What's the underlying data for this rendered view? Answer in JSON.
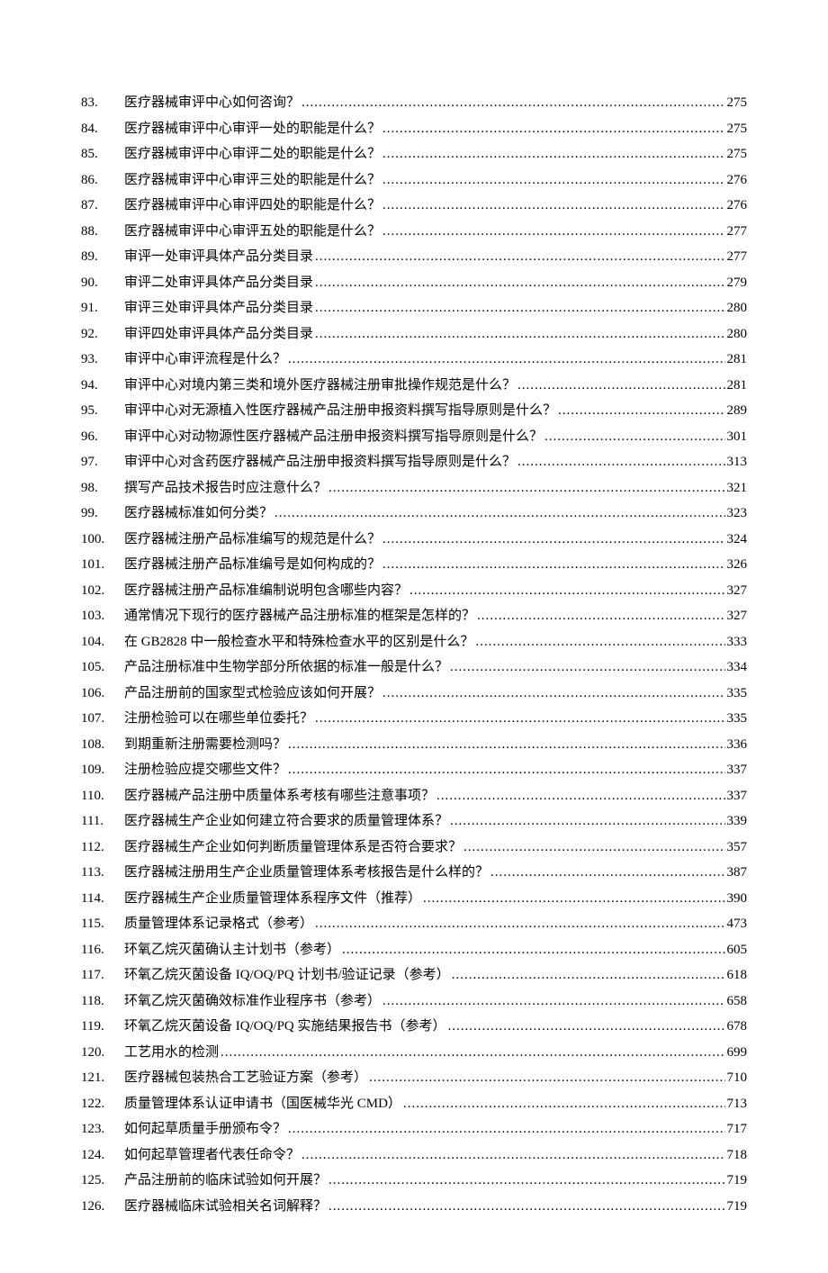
{
  "text_color": "#000000",
  "background_color": "#ffffff",
  "font_family": "SimSun",
  "font_size_pt": 11,
  "line_height": 1.9,
  "toc": [
    {
      "n": "83.",
      "title": "医疗器械审评中心如何咨询？",
      "page": "275"
    },
    {
      "n": "84.",
      "title": "医疗器械审评中心审评一处的职能是什么？",
      "page": "275"
    },
    {
      "n": "85.",
      "title": "医疗器械审评中心审评二处的职能是什么？",
      "page": "275"
    },
    {
      "n": "86.",
      "title": "医疗器械审评中心审评三处的职能是什么？",
      "page": "276"
    },
    {
      "n": "87.",
      "title": "医疗器械审评中心审评四处的职能是什么？",
      "page": "276"
    },
    {
      "n": "88.",
      "title": "医疗器械审评中心审评五处的职能是什么？",
      "page": "277"
    },
    {
      "n": "89.",
      "title": "审评一处审评具体产品分类目录",
      "page": "277"
    },
    {
      "n": "90.",
      "title": "审评二处审评具体产品分类目录",
      "page": "279"
    },
    {
      "n": "91.",
      "title": "审评三处审评具体产品分类目录",
      "page": "280"
    },
    {
      "n": "92.",
      "title": "审评四处审评具体产品分类目录",
      "page": "280"
    },
    {
      "n": "93.",
      "title": "审评中心审评流程是什么？",
      "page": "281"
    },
    {
      "n": "94.",
      "title": "审评中心对境内第三类和境外医疗器械注册审批操作规范是什么？",
      "page": "281"
    },
    {
      "n": "95.",
      "title": "审评中心对无源植入性医疗器械产品注册申报资料撰写指导原则是什么？",
      "page": "289"
    },
    {
      "n": "96.",
      "title": "审评中心对动物源性医疗器械产品注册申报资料撰写指导原则是什么？",
      "page": "301"
    },
    {
      "n": "97.",
      "title": "审评中心对含药医疗器械产品注册申报资料撰写指导原则是什么？",
      "page": "313"
    },
    {
      "n": "98.",
      "title": "撰写产品技术报告时应注意什么？",
      "page": "321"
    },
    {
      "n": "99.",
      "title": "医疗器械标准如何分类？",
      "page": "323"
    },
    {
      "n": "100.",
      "title": "医疗器械注册产品标准编写的规范是什么？",
      "page": "324"
    },
    {
      "n": "101.",
      "title": "医疗器械注册产品标准编号是如何构成的？",
      "page": "326"
    },
    {
      "n": "102.",
      "title": "医疗器械注册产品标准编制说明包含哪些内容？",
      "page": "327"
    },
    {
      "n": "103.",
      "title": "通常情况下现行的医疗器械产品注册标准的框架是怎样的？",
      "page": "327"
    },
    {
      "n": "104.",
      "title": "在 GB2828 中一般检查水平和特殊检查水平的区别是什么？",
      "page": "333"
    },
    {
      "n": "105.",
      "title": "产品注册标准中生物学部分所依据的标准一般是什么？",
      "page": "334"
    },
    {
      "n": "106.",
      "title": "产品注册前的国家型式检验应该如何开展？",
      "page": "335"
    },
    {
      "n": "107.",
      "title": "注册检验可以在哪些单位委托？",
      "page": "335"
    },
    {
      "n": "108.",
      "title": "到期重新注册需要检测吗？",
      "page": "336"
    },
    {
      "n": "109.",
      "title": "注册检验应提交哪些文件？",
      "page": "337"
    },
    {
      "n": "110.",
      "title": "医疗器械产品注册中质量体系考核有哪些注意事项？",
      "page": "337"
    },
    {
      "n": "111.",
      "title": "医疗器械生产企业如何建立符合要求的质量管理体系？",
      "page": "339"
    },
    {
      "n": "112.",
      "title": "医疗器械生产企业如何判断质量管理体系是否符合要求？",
      "page": "357"
    },
    {
      "n": "113.",
      "title": "医疗器械注册用生产企业质量管理体系考核报告是什么样的？",
      "page": "387"
    },
    {
      "n": "114.",
      "title": "医疗器械生产企业质量管理体系程序文件（推荐）",
      "page": "390"
    },
    {
      "n": "115.",
      "title": "质量管理体系记录格式（参考）",
      "page": "473"
    },
    {
      "n": "116.",
      "title": "环氧乙烷灭菌确认主计划书（参考）",
      "page": "605"
    },
    {
      "n": "117.",
      "title": "环氧乙烷灭菌设备 IQ/OQ/PQ 计划书/验证记录（参考）",
      "page": "618"
    },
    {
      "n": "118.",
      "title": "环氧乙烷灭菌确效标准作业程序书（参考）",
      "page": "658"
    },
    {
      "n": "119.",
      "title": "环氧乙烷灭菌设备 IQ/OQ/PQ 实施结果报告书（参考）",
      "page": "678"
    },
    {
      "n": "120.",
      "title": "工艺用水的检测",
      "page": "699"
    },
    {
      "n": "121.",
      "title": "医疗器械包装热合工艺验证方案（参考）",
      "page": "710"
    },
    {
      "n": "122.",
      "title": "质量管理体系认证申请书（国医械华光 CMD）",
      "page": "713"
    },
    {
      "n": "123.",
      "title": "如何起草质量手册颁布令？",
      "page": "717"
    },
    {
      "n": "124.",
      "title": "如何起草管理者代表任命令？",
      "page": "718"
    },
    {
      "n": "125.",
      "title": "产品注册前的临床试验如何开展？",
      "page": "719"
    },
    {
      "n": "126.",
      "title": "医疗器械临床试验相关名词解释？",
      "page": "719"
    }
  ]
}
